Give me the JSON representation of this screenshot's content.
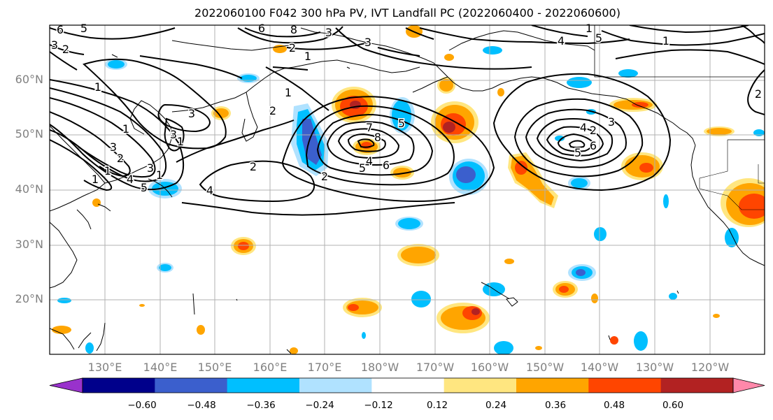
{
  "title": "2022060100 F042 300 hPa PV, IVT Landfall PC (2022060400 - 2022060600)",
  "lat_labels": [
    "60°N",
    "50°N",
    "40°N",
    "30°N",
    "20°N"
  ],
  "lon_labels": [
    "130°E",
    "140°E",
    "150°E",
    "160°E",
    "170°E",
    "180°W",
    "170°W",
    "160°W",
    "150°W",
    "140°W",
    "130°W",
    "120°W"
  ],
  "colorbar": {
    "ticks": [
      "−0.60",
      "−0.48",
      "−0.36",
      "−0.24",
      "−0.12",
      "0.12",
      "0.24",
      "0.36",
      "0.48",
      "0.60"
    ],
    "colors": [
      "#9932CC",
      "#00008B",
      "#3B5FCD",
      "#00BFFF",
      "#B0E2FF",
      "#FFFFFF",
      "#FFE680",
      "#FFA500",
      "#FF4500",
      "#B22222",
      "#FF88AA"
    ]
  },
  "contour_labels": [
    "6",
    "5",
    "3",
    "2",
    "1",
    "1",
    "3",
    "2",
    "1",
    "1",
    "2",
    "3",
    "4",
    "5",
    "4",
    "3",
    "1",
    "3",
    "1",
    "2",
    "1",
    "2",
    "7",
    "8",
    "5",
    "4",
    "6",
    "5",
    "2",
    "6",
    "5",
    "4",
    "3",
    "2",
    "1",
    "4",
    "5",
    "3",
    "1",
    "2",
    "1",
    "3",
    "8",
    "6"
  ]
}
